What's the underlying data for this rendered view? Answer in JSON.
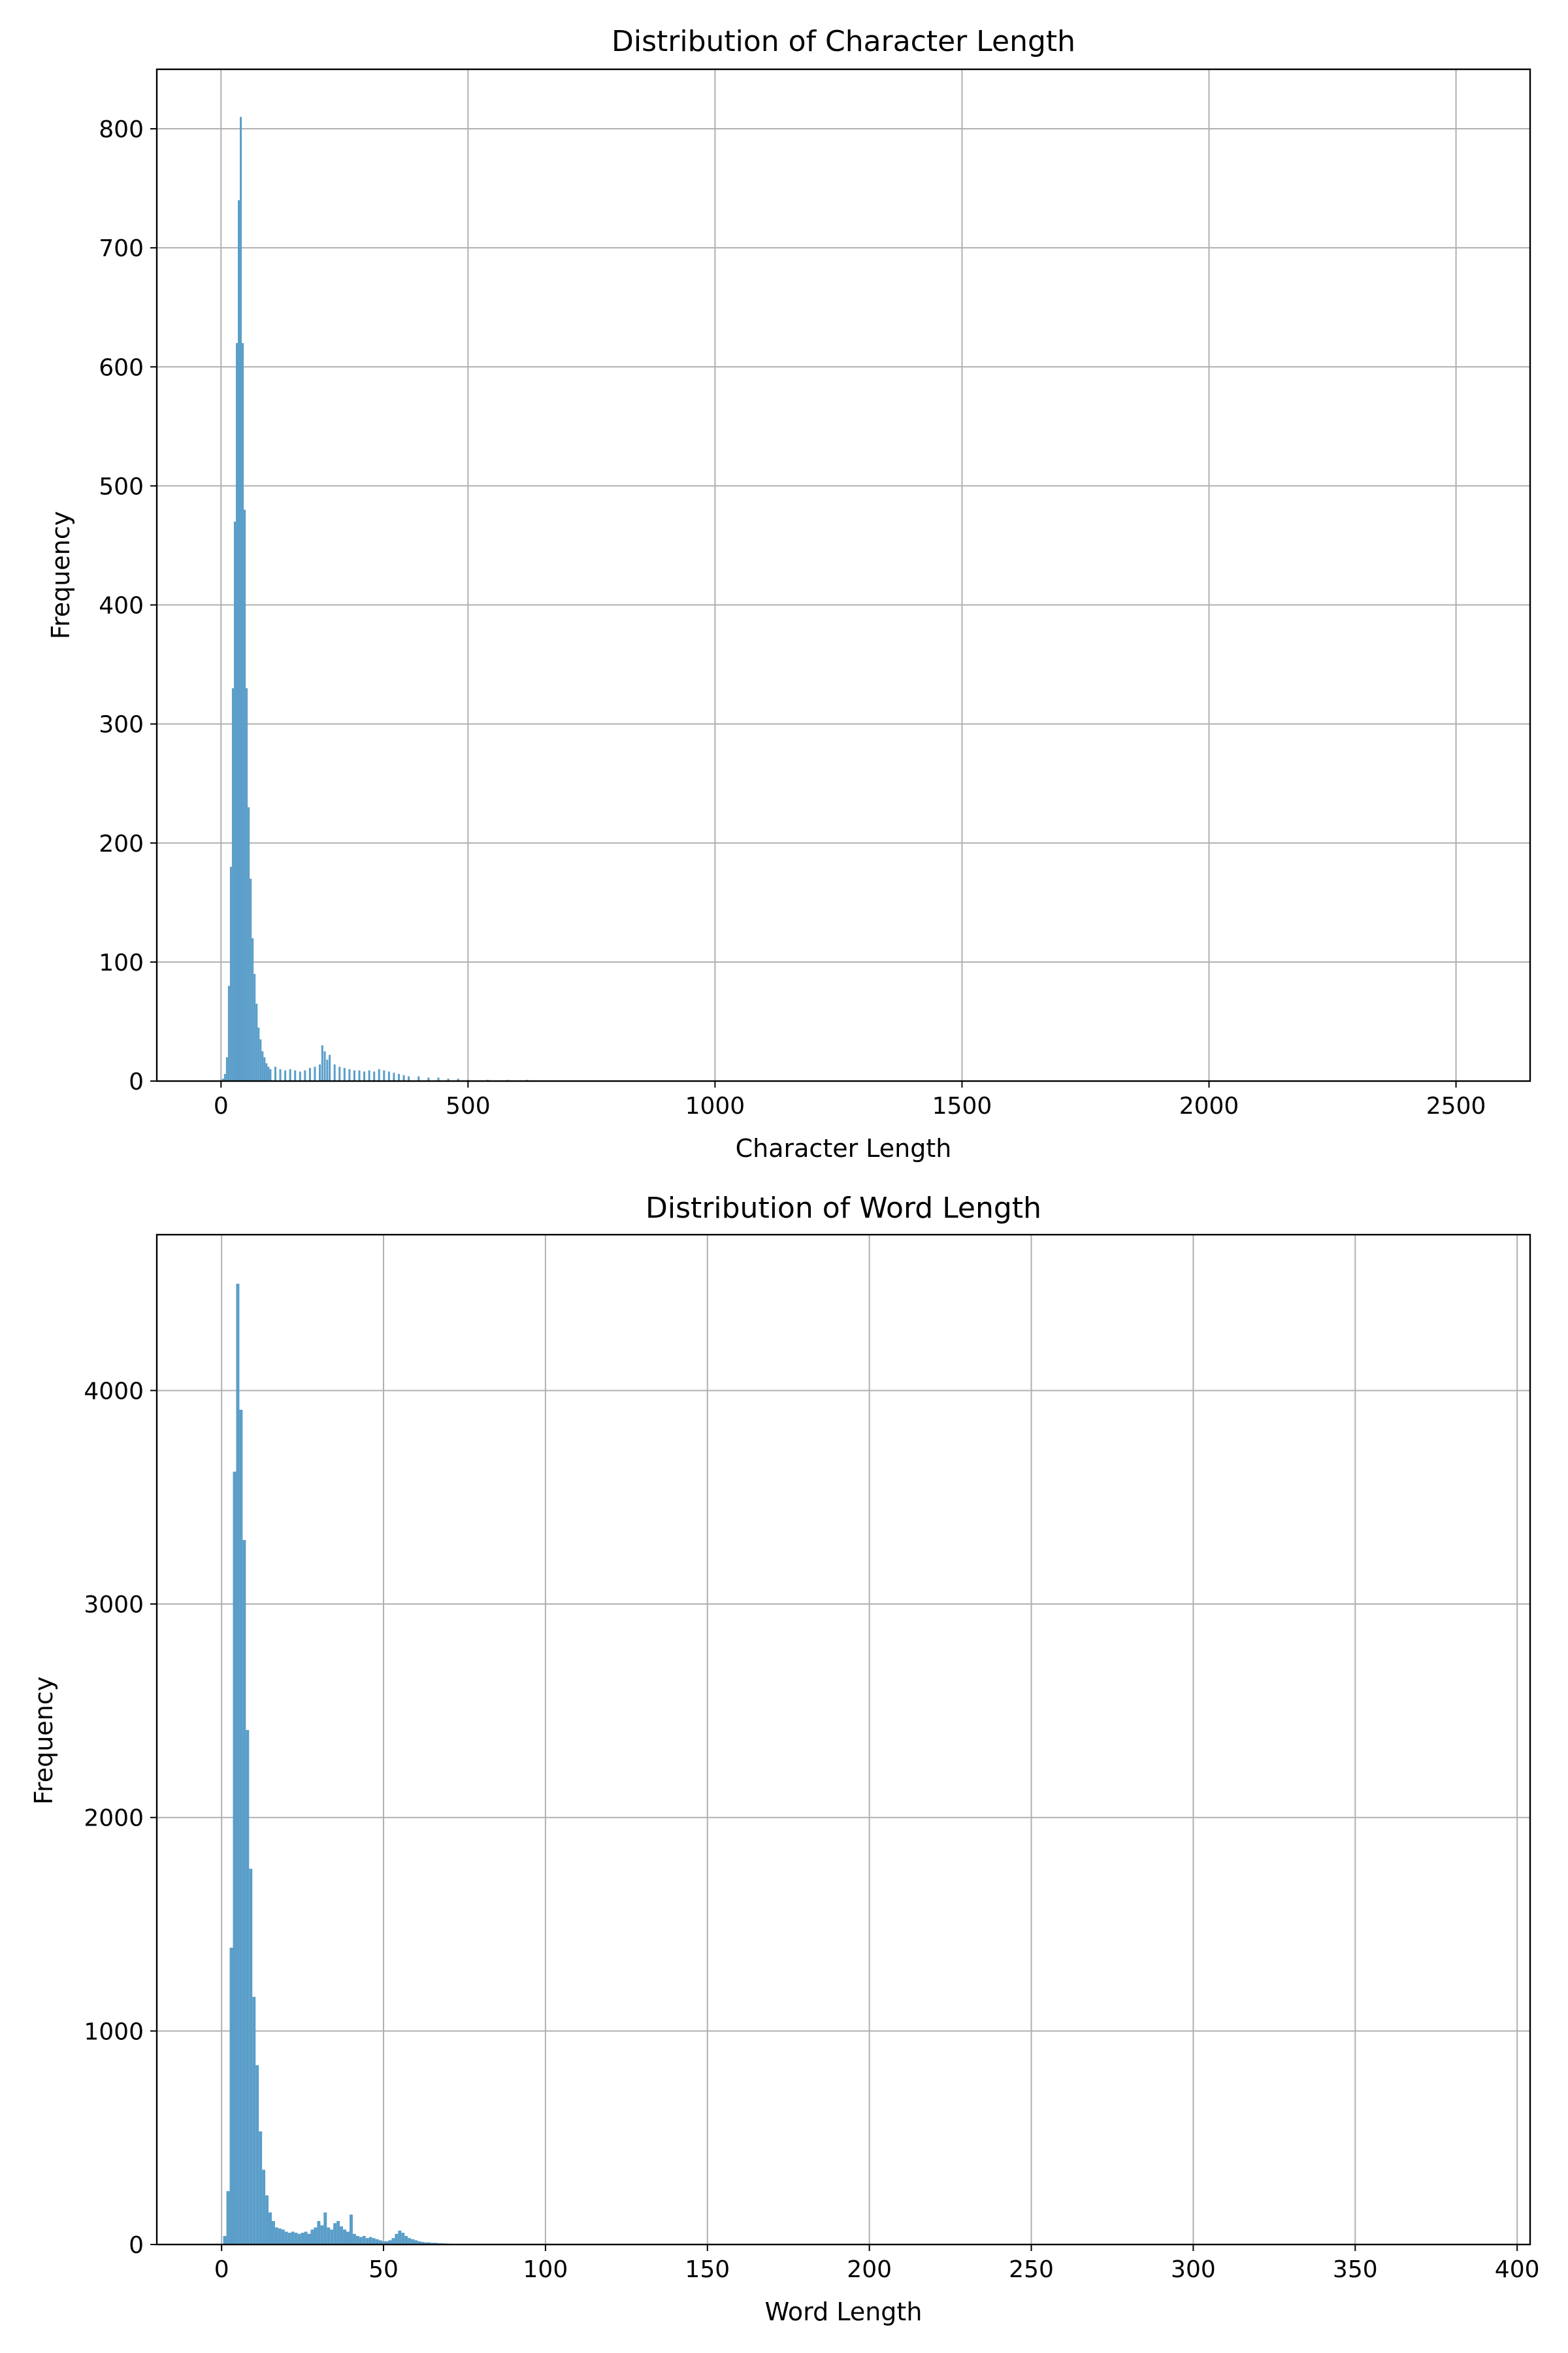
{
  "chart_data": [
    {
      "type": "bar",
      "title": "Distribution of Character Length",
      "xlabel": "Character Length",
      "ylabel": "Frequency",
      "xlim": [
        -130,
        2650
      ],
      "ylim": [
        0,
        850
      ],
      "xticks": [
        0,
        500,
        1000,
        1500,
        2000,
        2500
      ],
      "yticks": [
        0,
        100,
        200,
        300,
        400,
        500,
        600,
        700,
        800
      ],
      "grid": true,
      "color": "#5a9ec9",
      "bin_width": 4,
      "x": [
        4,
        8,
        12,
        16,
        20,
        24,
        28,
        32,
        36,
        40,
        44,
        48,
        52,
        56,
        60,
        64,
        68,
        72,
        76,
        80,
        84,
        88,
        92,
        96,
        100,
        110,
        120,
        130,
        140,
        150,
        160,
        170,
        180,
        190,
        200,
        205,
        210,
        215,
        220,
        230,
        240,
        250,
        260,
        270,
        280,
        290,
        300,
        310,
        320,
        330,
        340,
        350,
        360,
        370,
        380,
        400,
        420,
        440,
        460,
        480,
        500,
        540,
        580,
        620,
        660,
        700,
        750,
        800
      ],
      "values": [
        2,
        6,
        20,
        80,
        180,
        330,
        470,
        620,
        740,
        810,
        620,
        480,
        330,
        230,
        170,
        120,
        90,
        65,
        45,
        35,
        25,
        20,
        15,
        12,
        10,
        12,
        10,
        9,
        10,
        9,
        8,
        9,
        11,
        12,
        14,
        30,
        25,
        18,
        22,
        14,
        12,
        11,
        10,
        9,
        9,
        8,
        9,
        8,
        10,
        9,
        8,
        7,
        6,
        5,
        4,
        4,
        3,
        3,
        2,
        2,
        1,
        1,
        1,
        1,
        0.5,
        0.5,
        0.3,
        0.2
      ]
    },
    {
      "type": "bar",
      "title": "Distribution of Word Length",
      "xlabel": "Word Length",
      "ylabel": "Frequency",
      "xlim": [
        -20,
        404
      ],
      "ylim": [
        0,
        4730
      ],
      "xticks": [
        0,
        50,
        100,
        150,
        200,
        250,
        300,
        350,
        400
      ],
      "yticks": [
        0,
        1000,
        2000,
        3000,
        4000
      ],
      "grid": true,
      "color": "#5a9ec9",
      "bin_width": 1,
      "x": [
        1,
        2,
        3,
        4,
        5,
        6,
        7,
        8,
        9,
        10,
        11,
        12,
        13,
        14,
        15,
        16,
        17,
        18,
        19,
        20,
        21,
        22,
        23,
        24,
        25,
        26,
        27,
        28,
        29,
        30,
        31,
        32,
        33,
        34,
        35,
        36,
        37,
        38,
        39,
        40,
        41,
        42,
        43,
        44,
        45,
        46,
        47,
        48,
        49,
        50,
        51,
        52,
        53,
        54,
        55,
        56,
        57,
        58,
        59,
        60,
        61,
        62,
        63,
        64,
        65,
        66,
        67,
        68,
        69,
        70,
        72,
        75,
        78,
        80,
        85,
        90
      ],
      "values": [
        40,
        250,
        1390,
        3620,
        4500,
        3910,
        3300,
        2410,
        1760,
        1160,
        840,
        530,
        350,
        230,
        150,
        110,
        80,
        75,
        70,
        60,
        55,
        60,
        55,
        50,
        55,
        60,
        50,
        70,
        80,
        110,
        90,
        150,
        80,
        70,
        100,
        110,
        85,
        70,
        60,
        140,
        50,
        40,
        35,
        40,
        30,
        35,
        30,
        25,
        20,
        15,
        15,
        20,
        30,
        50,
        65,
        55,
        40,
        30,
        25,
        20,
        15,
        12,
        10,
        10,
        8,
        8,
        6,
        6,
        5,
        4,
        3,
        2,
        2,
        1,
        1,
        1
      ]
    }
  ]
}
